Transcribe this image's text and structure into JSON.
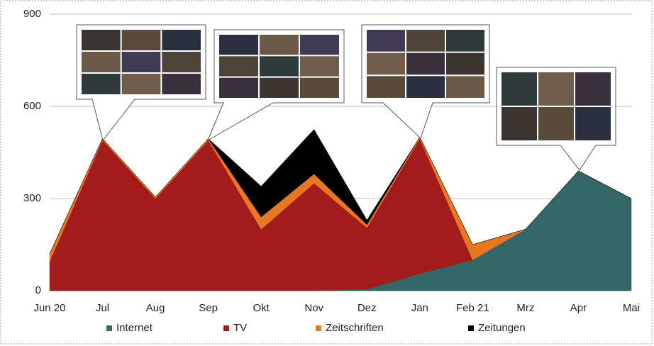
{
  "chart_data": {
    "type": "area",
    "stacked": true,
    "categories": [
      "Jun 20",
      "Jul",
      "Aug",
      "Sep",
      "Okt",
      "Nov",
      "Dez",
      "Jan",
      "Feb 21",
      "Mrz",
      "Apr",
      "Mai"
    ],
    "series": [
      {
        "name": "Internet",
        "color": "#336666",
        "values": [
          0,
          0,
          0,
          0,
          0,
          0,
          5,
          55,
          100,
          200,
          390,
          300
        ]
      },
      {
        "name": "TV",
        "color": "#a31c1c",
        "values": [
          95,
          490,
          300,
          490,
          200,
          350,
          200,
          440,
          0,
          0,
          0,
          0
        ]
      },
      {
        "name": "Zeitschriften",
        "color": "#e87722",
        "values": [
          25,
          5,
          5,
          5,
          40,
          30,
          10,
          5,
          50,
          0,
          0,
          0
        ]
      },
      {
        "name": "Zeitungen",
        "color": "#000000",
        "values": [
          0,
          0,
          0,
          0,
          100,
          145,
          15,
          0,
          0,
          0,
          0,
          0
        ]
      }
    ],
    "ylim": [
      0,
      900
    ],
    "yticks": [
      0,
      300,
      600,
      900
    ],
    "grid": true,
    "legend": "bottom"
  }
}
